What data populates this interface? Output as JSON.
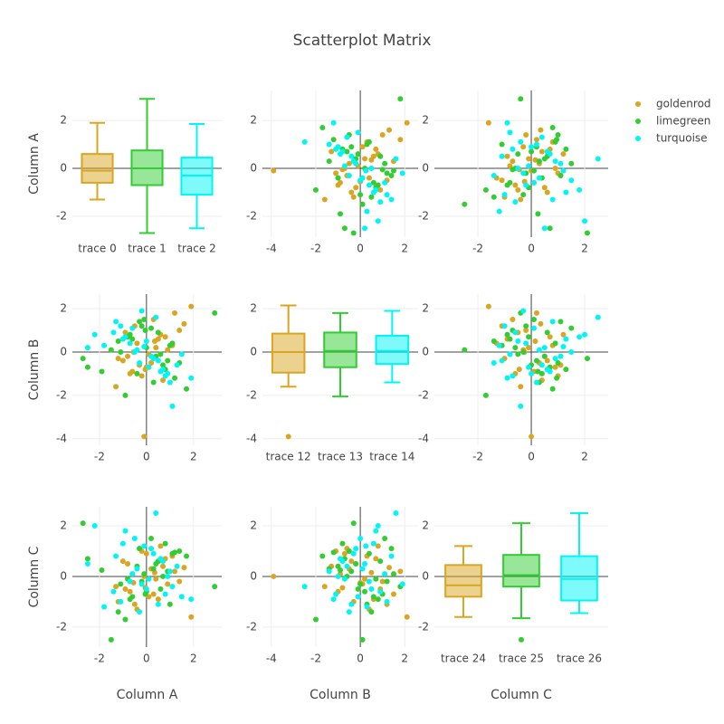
{
  "chart_data": {
    "type": "scatter-matrix",
    "title": "Scatterplot Matrix",
    "legend": "right",
    "grid": true,
    "dimensions": [
      {
        "label": "Column A",
        "xlim": [
          -3.15,
          3.2
        ],
        "ylim": [
          -2.87,
          3.25
        ],
        "ticks": [
          -2,
          0,
          2
        ]
      },
      {
        "label": "Column B",
        "xlim": [
          -4.4,
          2.6
        ],
        "ylim": [
          -4.3,
          2.67
        ],
        "ticks": [
          -4,
          -2,
          0,
          2
        ]
      },
      {
        "label": "Column C",
        "xlim": [
          -3.63,
          2.88
        ],
        "ylim": [
          -2.79,
          2.75
        ],
        "ticks": [
          -2,
          0,
          2
        ]
      }
    ],
    "groups": [
      {
        "name": "goldenrod",
        "color": "#daa520",
        "columns": [
          [
            0.2,
            -0.5,
            1.1,
            -1.3,
            0.6,
            -0.1,
            1.9,
            -0.8,
            0.3,
            -0.6,
            0.9,
            -0.2,
            0.5,
            -1.0,
            1.4,
            0.0,
            -0.4,
            0.7,
            -0.9,
            0.1,
            1.2,
            -0.3,
            0.4,
            -0.7,
            0.8,
            -1.2,
            1.6,
            -0.05,
            0.35,
            -0.55
          ],
          [
            -0.5,
            1.2,
            0.3,
            -1.6,
            0.8,
            -3.9,
            2.1,
            -0.2,
            1.5,
            -0.9,
            0.1,
            -1.1,
            0.6,
            -0.4,
            1.0,
            -0.7,
            0.4,
            -1.3,
            0.9,
            -0.1,
            1.8,
            -0.6,
            0.2,
            -1.0,
            0.7,
            -0.3,
            1.3,
            -0.8,
            0.5,
            0.0
          ],
          [
            0.3,
            -1.1,
            0.8,
            -0.4,
            1.2,
            0.0,
            -1.6,
            0.5,
            -0.7,
            0.1,
            -0.3,
            1.0,
            -0.9,
            0.6,
            -0.2,
            0.9,
            -1.3,
            0.4,
            -0.5,
            -0.8,
            0.2,
            1.1,
            -0.1,
            -0.6,
            0.7,
            -1.0,
            0.35,
            -0.45,
            0.15,
            -0.25
          ]
        ]
      },
      {
        "name": "limegreen",
        "color": "#32cd32",
        "columns": [
          [
            2.9,
            -2.7,
            0.5,
            -0.9,
            1.1,
            -0.2,
            0.8,
            -1.5,
            0.3,
            -0.6,
            1.4,
            -0.1,
            0.6,
            -2.5,
            1.0,
            -0.4,
            0.2,
            -1.1,
            0.9,
            -0.7,
            1.7,
            0.0,
            -0.3,
            0.7,
            -1.2,
            0.4,
            -0.8,
            1.2,
            -0.05,
            -1.9
          ],
          [
            1.8,
            -0.3,
            0.9,
            -2.0,
            0.4,
            1.2,
            -0.8,
            0.1,
            -1.4,
            0.6,
            -0.5,
            1.5,
            -0.1,
            -0.7,
            0.3,
            -1.0,
            1.1,
            0.0,
            -0.4,
            0.8,
            -1.7,
            0.2,
            1.4,
            -0.6,
            0.5,
            -0.2,
            0.7,
            -1.2,
            1.0,
            -0.9
          ],
          [
            -0.4,
            2.1,
            0.6,
            -1.7,
            0.9,
            -0.2,
            1.3,
            -2.5,
            0.3,
            -0.8,
            1.0,
            0.1,
            -0.5,
            0.7,
            -1.1,
            0.4,
            1.5,
            -0.3,
            0.2,
            -0.9,
            0.8,
            -0.6,
            1.1,
            0.0,
            -1.4,
            0.5,
            -0.1,
            0.95,
            -0.7,
            0.25
          ]
        ]
      },
      {
        "name": "turquoise",
        "color": "#00f5f5",
        "columns": [
          [
            -0.9,
            1.9,
            -2.5,
            0.4,
            -0.3,
            1.0,
            -1.4,
            0.2,
            -0.7,
            0.6,
            -1.1,
            1.3,
            -0.5,
            0.0,
            0.9,
            -1.8,
            0.3,
            -0.2,
            0.7,
            -1.0,
            1.5,
            -0.6,
            0.1,
            -2.2,
            0.8,
            -0.4,
            0.5,
            -1.3,
            1.1,
            -0.1
          ],
          [
            0.7,
            -1.2,
            0.2,
            1.6,
            -0.5,
            -1.4,
            0.9,
            -0.2,
            0.4,
            -0.9,
            1.2,
            -0.6,
            0.0,
            0.5,
            -1.0,
            0.3,
            -0.3,
            1.9,
            -0.8,
            0.6,
            -0.1,
            1.1,
            -0.7,
            0.8,
            -1.1,
            0.1,
            -0.4,
            1.4,
            -2.5,
            0.25
          ],
          [
            1.8,
            -0.9,
            0.5,
            2.5,
            -1.4,
            0.2,
            -0.6,
            1.1,
            -0.2,
            0.7,
            -1.0,
            0.4,
            1.5,
            -0.5,
            0.0,
            -1.2,
            0.9,
            -0.3,
            0.6,
            1.3,
            -0.8,
            0.1,
            -0.1,
            2.0,
            -0.7,
            0.3,
            -1.1,
            0.8,
            -0.4,
            1.2
          ]
        ]
      }
    ],
    "boxes": [
      [
        {
          "name": "trace 0",
          "lower": -1.3,
          "q1": -0.6,
          "median": -0.1,
          "q3": 0.6,
          "upper": 1.9,
          "outliers": []
        },
        {
          "name": "trace 1",
          "lower": -2.7,
          "q1": -0.7,
          "median": 0.0,
          "q3": 0.75,
          "upper": 2.9,
          "outliers": []
        },
        {
          "name": "trace 2",
          "lower": -2.5,
          "q1": -1.1,
          "median": -0.3,
          "q3": 0.45,
          "upper": 1.85,
          "outliers": []
        }
      ],
      [
        {
          "name": "trace 12",
          "lower": -1.6,
          "q1": -0.95,
          "median": 0.0,
          "q3": 0.85,
          "upper": 2.15,
          "outliers": [
            -3.9
          ]
        },
        {
          "name": "trace 13",
          "lower": -2.05,
          "q1": -0.7,
          "median": 0.05,
          "q3": 0.9,
          "upper": 1.8,
          "outliers": []
        },
        {
          "name": "trace 14",
          "lower": -1.4,
          "q1": -0.55,
          "median": 0.05,
          "q3": 0.75,
          "upper": 1.9,
          "outliers": []
        }
      ],
      [
        {
          "name": "trace 24",
          "lower": -1.6,
          "q1": -0.8,
          "median": -0.35,
          "q3": 0.45,
          "upper": 1.2,
          "outliers": []
        },
        {
          "name": "trace 25",
          "lower": -1.65,
          "q1": -0.4,
          "median": 0.05,
          "q3": 0.85,
          "upper": 2.1,
          "outliers": [
            -2.5
          ]
        },
        {
          "name": "trace 26",
          "lower": -1.45,
          "q1": -0.95,
          "median": -0.1,
          "q3": 0.8,
          "upper": 2.5,
          "outliers": []
        }
      ]
    ]
  }
}
